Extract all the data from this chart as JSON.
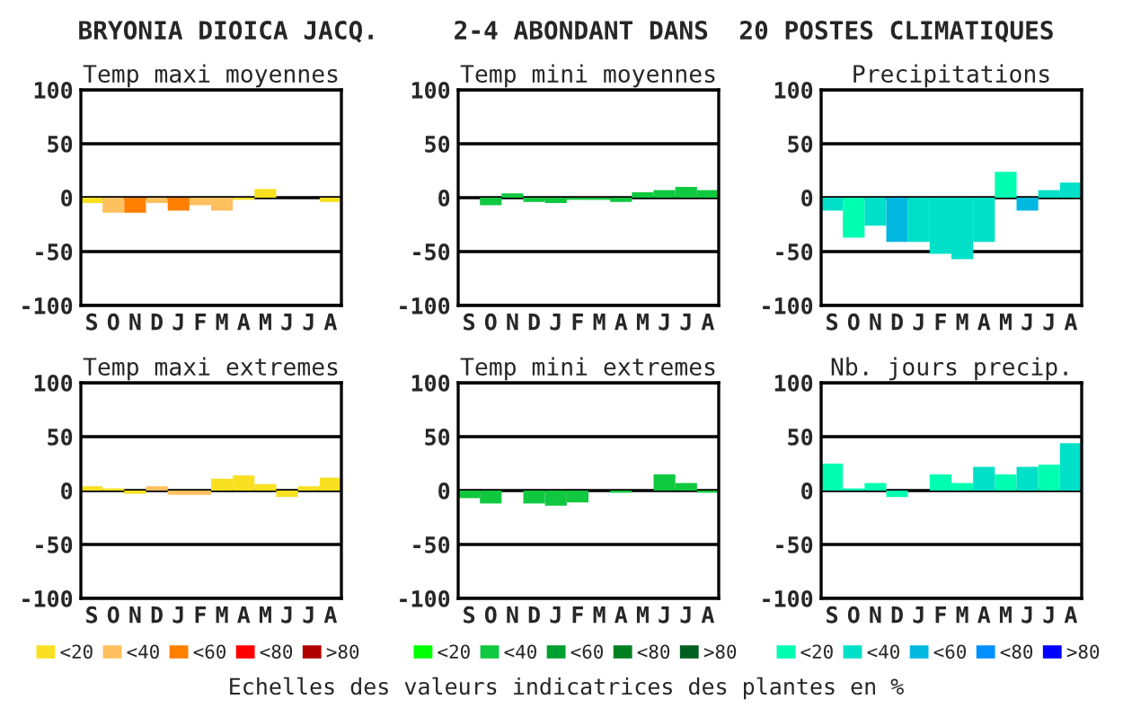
{
  "chart_data": [
    {
      "type": "bar",
      "title": "Temp maxi moyennes",
      "annotations": [
        "BRYONIA DIOICA JACQ.     2-4 ABONDANT DANS  20 POSTES CLIMATIQUES"
      ],
      "categories": [
        "S",
        "O",
        "N",
        "D",
        "J",
        "F",
        "M",
        "A",
        "M",
        "J",
        "J",
        "A"
      ],
      "values": [
        -5,
        -14,
        -14,
        -5,
        -12,
        -7,
        -12,
        -2,
        8,
        0,
        0,
        -4
      ],
      "colors": [
        "#f8e020",
        "#ffc060",
        "#ff8000",
        "#ffc060",
        "#ff8000",
        "#ffc060",
        "#ffc060",
        "#f8e020",
        "#f8e020",
        "#f8e020",
        "#f8e020",
        "#f8e020"
      ],
      "ylim": [
        -100,
        100
      ],
      "yticks": [
        -100,
        -50,
        0,
        50,
        100
      ],
      "grid": "y"
    },
    {
      "type": "bar",
      "title": "Temp mini moyennes",
      "categories": [
        "S",
        "O",
        "N",
        "D",
        "J",
        "F",
        "M",
        "A",
        "M",
        "J",
        "J",
        "A"
      ],
      "values": [
        0,
        -7,
        4,
        -4,
        -5,
        -2,
        -2,
        -4,
        5,
        7,
        10,
        7
      ],
      "colors": [
        "#10c840",
        "#10c840",
        "#10c840",
        "#10c840",
        "#10c840",
        "#10c840",
        "#10c840",
        "#10c840",
        "#10c840",
        "#10c840",
        "#10c840",
        "#10c840"
      ],
      "ylim": [
        -100,
        100
      ],
      "yticks": [
        -100,
        -50,
        0,
        50,
        100
      ],
      "grid": "y"
    },
    {
      "type": "bar",
      "title": "Precipitations",
      "categories": [
        "S",
        "O",
        "N",
        "D",
        "J",
        "F",
        "M",
        "A",
        "M",
        "J",
        "J",
        "A"
      ],
      "values": [
        -12,
        -37,
        -26,
        -41,
        -41,
        -52,
        -57,
        -41,
        24,
        -12,
        7,
        14
      ],
      "colors": [
        "#00e0c8",
        "#00ffb0",
        "#00e0c8",
        "#00b8e0",
        "#00e0c8",
        "#00e0c8",
        "#00e0c8",
        "#00e0c8",
        "#00ffb0",
        "#00b8e0",
        "#00e0c8",
        "#00e0c8"
      ],
      "ylim": [
        -100,
        100
      ],
      "yticks": [
        -100,
        -50,
        0,
        50,
        100
      ],
      "grid": "y"
    },
    {
      "type": "bar",
      "title": "Temp maxi extremes",
      "categories": [
        "S",
        "O",
        "N",
        "D",
        "J",
        "F",
        "M",
        "A",
        "M",
        "J",
        "J",
        "A"
      ],
      "stacked": true,
      "legend": "bottom",
      "series": [
        {
          "name": "<20",
          "color": "#f8e020",
          "values": [
            4,
            2,
            -3,
            null,
            null,
            null,
            11,
            14,
            6,
            -6,
            4,
            12
          ]
        },
        {
          "name": "<40",
          "color": "#ffc060",
          "values": [
            null,
            null,
            null,
            4,
            -4,
            -4,
            null,
            null,
            null,
            null,
            null,
            null
          ]
        },
        {
          "name": "<60",
          "color": "#ff8000",
          "values": [
            null,
            null,
            null,
            null,
            null,
            null,
            null,
            null,
            null,
            null,
            null,
            null
          ]
        },
        {
          "name": "<80",
          "color": "#ff0000",
          "values": [
            null,
            null,
            null,
            null,
            null,
            null,
            null,
            null,
            null,
            null,
            null,
            null
          ]
        },
        {
          "name": ">80",
          "color": "#b00000",
          "values": [
            null,
            null,
            null,
            null,
            null,
            null,
            null,
            null,
            null,
            null,
            null,
            null
          ]
        }
      ],
      "ylim": [
        -100,
        100
      ],
      "yticks": [
        -100,
        -50,
        0,
        50,
        100
      ],
      "grid": "y"
    },
    {
      "type": "bar",
      "title": "Temp mini extremes",
      "annotations": [
        "Echelles des valeurs indicatrices des plantes en %"
      ],
      "categories": [
        "S",
        "O",
        "N",
        "D",
        "J",
        "F",
        "M",
        "A",
        "M",
        "J",
        "J",
        "A"
      ],
      "stacked": true,
      "legend": "bottom",
      "series": [
        {
          "name": "<20",
          "color": "#00ff00",
          "values": [
            null,
            null,
            null,
            null,
            null,
            null,
            null,
            null,
            null,
            null,
            null,
            null
          ]
        },
        {
          "name": "<40",
          "color": "#10c840",
          "values": [
            -7,
            -12,
            0,
            -12,
            -14,
            -11,
            0,
            -2,
            0,
            15,
            7,
            -2
          ]
        },
        {
          "name": "<60",
          "color": "#00a030",
          "values": [
            null,
            null,
            null,
            null,
            null,
            null,
            null,
            null,
            null,
            null,
            null,
            null
          ]
        },
        {
          "name": "<80",
          "color": "#008020",
          "values": [
            null,
            null,
            null,
            null,
            null,
            null,
            null,
            null,
            null,
            null,
            null,
            null
          ]
        },
        {
          "name": ">80",
          "color": "#006020",
          "values": [
            null,
            null,
            null,
            null,
            null,
            null,
            null,
            null,
            null,
            null,
            null,
            null
          ]
        }
      ],
      "ylim": [
        -100,
        100
      ],
      "yticks": [
        -100,
        -50,
        0,
        50,
        100
      ],
      "grid": "y"
    },
    {
      "type": "bar",
      "title": "Nb. jours precip.",
      "categories": [
        "S",
        "O",
        "N",
        "D",
        "J",
        "F",
        "M",
        "A",
        "M",
        "J",
        "J",
        "A"
      ],
      "stacked": true,
      "legend": "bottom",
      "series": [
        {
          "name": "<20",
          "color": "#00ffb0",
          "values": [
            25,
            2,
            7,
            -6,
            0,
            15,
            7,
            null,
            15,
            null,
            24,
            null
          ]
        },
        {
          "name": "<40",
          "color": "#00e0c8",
          "values": [
            null,
            null,
            null,
            null,
            null,
            null,
            null,
            22,
            null,
            22,
            null,
            44
          ]
        },
        {
          "name": "<60",
          "color": "#00b8e0",
          "values": [
            null,
            null,
            null,
            null,
            null,
            null,
            null,
            null,
            null,
            null,
            null,
            null
          ]
        },
        {
          "name": "<80",
          "color": "#0090ff",
          "values": [
            null,
            null,
            null,
            null,
            null,
            null,
            null,
            null,
            null,
            null,
            null,
            null
          ]
        },
        {
          "name": ">80",
          "color": "#0000ff",
          "values": [
            null,
            null,
            null,
            null,
            null,
            null,
            null,
            null,
            null,
            null,
            null,
            null
          ]
        }
      ],
      "ylim": [
        -100,
        100
      ],
      "yticks": [
        -100,
        -50,
        0,
        50,
        100
      ],
      "grid": "y"
    }
  ]
}
